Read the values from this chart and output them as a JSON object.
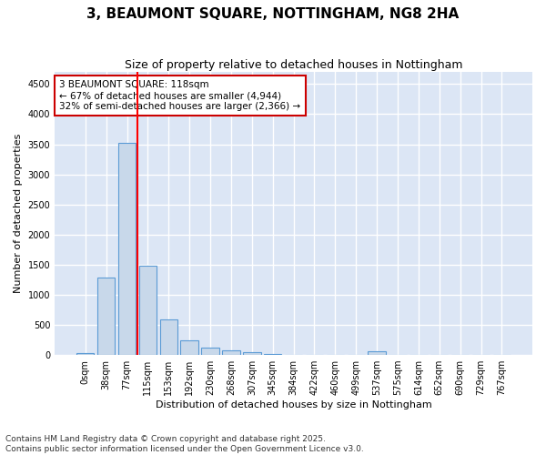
{
  "title": "3, BEAUMONT SQUARE, NOTTINGHAM, NG8 2HA",
  "subtitle": "Size of property relative to detached houses in Nottingham",
  "xlabel": "Distribution of detached houses by size in Nottingham",
  "ylabel": "Number of detached properties",
  "bin_labels": [
    "0sqm",
    "38sqm",
    "77sqm",
    "115sqm",
    "153sqm",
    "192sqm",
    "230sqm",
    "268sqm",
    "307sqm",
    "345sqm",
    "384sqm",
    "422sqm",
    "460sqm",
    "499sqm",
    "537sqm",
    "575sqm",
    "614sqm",
    "652sqm",
    "690sqm",
    "729sqm",
    "767sqm"
  ],
  "bar_values": [
    30,
    1290,
    3530,
    1490,
    590,
    240,
    115,
    75,
    45,
    20,
    5,
    5,
    0,
    0,
    55,
    0,
    0,
    0,
    0,
    0,
    0
  ],
  "bar_color": "#c8d8ea",
  "bar_edge_color": "#5b9bd5",
  "red_line_bin_index": 3,
  "annotation_text": "3 BEAUMONT SQUARE: 118sqm\n← 67% of detached houses are smaller (4,944)\n32% of semi-detached houses are larger (2,366) →",
  "annotation_box_facecolor": "#ffffff",
  "annotation_box_edgecolor": "#cc0000",
  "ylim": [
    0,
    4700
  ],
  "yticks": [
    0,
    500,
    1000,
    1500,
    2000,
    2500,
    3000,
    3500,
    4000,
    4500
  ],
  "footer_line1": "Contains HM Land Registry data © Crown copyright and database right 2025.",
  "footer_line2": "Contains public sector information licensed under the Open Government Licence v3.0.",
  "fig_facecolor": "#ffffff",
  "plot_facecolor": "#dce6f5",
  "grid_color": "#ffffff",
  "title_fontsize": 11,
  "subtitle_fontsize": 9,
  "ylabel_fontsize": 8,
  "xlabel_fontsize": 8,
  "tick_fontsize": 7,
  "footer_fontsize": 6.5,
  "annotation_fontsize": 7.5
}
